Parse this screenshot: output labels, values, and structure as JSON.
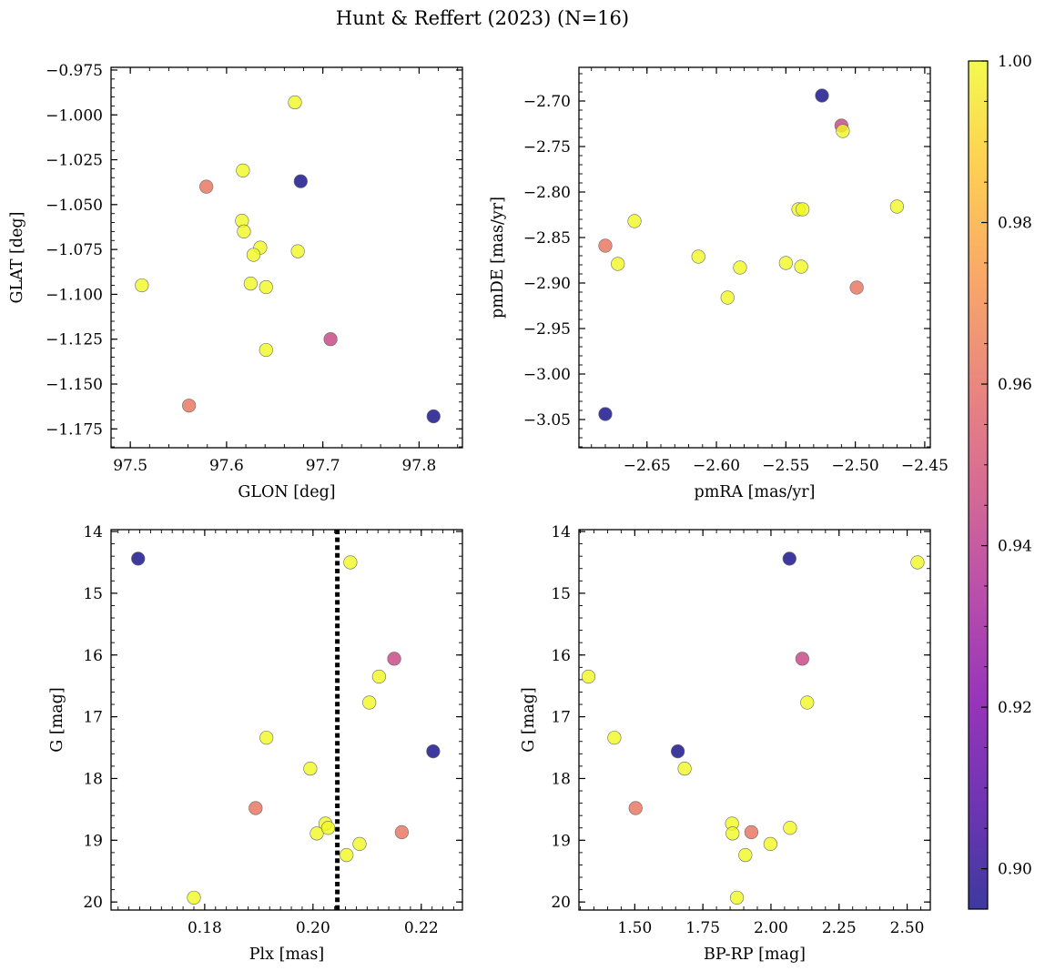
{
  "figure": {
    "title": "Hunt & Reffert (2023) (N=16)"
  },
  "colorbar": {
    "colormap": "plasma",
    "range": [
      0.895,
      1.0
    ],
    "ticks": [
      0.9,
      0.92,
      0.94,
      0.96,
      0.98,
      1.0
    ],
    "tick_labels": [
      "0.90",
      "0.92",
      "0.94",
      "0.96",
      "0.98",
      "1.00"
    ],
    "alpha": 0.8
  },
  "chart_data": [
    {
      "type": "scatter",
      "id": "glon-glat",
      "xlabel": "GLON [deg]",
      "ylabel": "GLAT [deg]",
      "xlim": [
        97.48,
        97.845
      ],
      "ylim": [
        -1.1855,
        -0.9735
      ],
      "y_inverted": false,
      "xticks": [
        97.5,
        97.6,
        97.7,
        97.8
      ],
      "xtick_labels": [
        "97.5",
        "97.6",
        "97.7",
        "97.8"
      ],
      "yticks": [
        -0.975,
        -1.0,
        -1.025,
        -1.05,
        -1.075,
        -1.1,
        -1.125,
        -1.15,
        -1.175
      ],
      "ytick_labels": [
        "−0.975",
        "−1.000",
        "−1.025",
        "−1.050",
        "−1.075",
        "−1.100",
        "−1.125",
        "−1.150",
        "−1.175"
      ],
      "xminor": 0.02,
      "yminor": 0.005,
      "x": [
        97.671,
        97.617,
        97.677,
        97.579,
        97.616,
        97.618,
        97.635,
        97.674,
        97.628,
        97.512,
        97.625,
        97.641,
        97.708,
        97.641,
        97.561,
        97.815
      ],
      "y": [
        -0.993,
        -1.031,
        -1.037,
        -1.04,
        -1.059,
        -1.065,
        -1.074,
        -1.076,
        -1.078,
        -1.095,
        -1.094,
        -1.096,
        -1.125,
        -1.131,
        -1.162,
        -1.168
      ],
      "color_values": [
        1.0,
        1.0,
        0.895,
        0.962,
        1.0,
        1.0,
        1.0,
        1.0,
        1.0,
        1.0,
        1.0,
        1.0,
        0.945,
        1.0,
        0.962,
        0.895
      ]
    },
    {
      "type": "scatter",
      "id": "pmra-pmde",
      "xlabel": "pmRA [mas/yr]",
      "ylabel": "pmDE [mas/yr]",
      "xlim": [
        -2.699,
        -2.446
      ],
      "ylim": [
        -3.081,
        -2.663
      ],
      "y_inverted": false,
      "xticks": [
        -2.65,
        -2.6,
        -2.55,
        -2.5,
        -2.45
      ],
      "xtick_labels": [
        "−2.65",
        "−2.60",
        "−2.55",
        "−2.50",
        "−2.45"
      ],
      "yticks": [
        -2.7,
        -2.75,
        -2.8,
        -2.85,
        -2.9,
        -2.95,
        -3.0,
        -3.05
      ],
      "ytick_labels": [
        "−2.70",
        "−2.75",
        "−2.80",
        "−2.85",
        "−2.90",
        "−2.95",
        "−3.00",
        "−3.05"
      ],
      "xminor": 0.01,
      "yminor": 0.01,
      "x": [
        -2.524,
        -2.51,
        -2.509,
        -2.47,
        -2.659,
        -2.541,
        -2.538,
        -2.68,
        -2.671,
        -2.613,
        -2.583,
        -2.55,
        -2.539,
        -2.499,
        -2.592,
        -2.68
      ],
      "y": [
        -2.694,
        -2.727,
        -2.733,
        -2.816,
        -2.832,
        -2.819,
        -2.819,
        -2.859,
        -2.879,
        -2.871,
        -2.883,
        -2.878,
        -2.882,
        -2.905,
        -2.916,
        -3.044
      ],
      "color_values": [
        0.895,
        0.945,
        1.0,
        1.0,
        1.0,
        1.0,
        1.0,
        0.962,
        1.0,
        1.0,
        1.0,
        1.0,
        1.0,
        0.962,
        1.0,
        0.895
      ]
    },
    {
      "type": "scatter",
      "id": "plx-g",
      "xlabel": "Plx [mas]",
      "ylabel": "G [mag]",
      "xlim": [
        0.1627,
        0.2276
      ],
      "ylim": [
        13.97,
        20.13
      ],
      "y_inverted": true,
      "xticks": [
        0.18,
        0.2,
        0.22
      ],
      "xtick_labels": [
        "0.18",
        "0.20",
        "0.22"
      ],
      "yticks": [
        14,
        15,
        16,
        17,
        18,
        19,
        20
      ],
      "ytick_labels": [
        "14",
        "15",
        "16",
        "17",
        "18",
        "19",
        "20"
      ],
      "xminor": 0.002,
      "yminor": 0.2,
      "vline": 0.2045,
      "x": [
        0.1677,
        0.2069,
        0.215,
        0.2122,
        0.2104,
        0.1914,
        0.2222,
        0.1995,
        0.1894,
        0.2164,
        0.2023,
        0.2007,
        0.2028,
        0.2086,
        0.2062,
        0.178
      ],
      "y": [
        14.44,
        14.5,
        16.06,
        16.35,
        16.77,
        17.34,
        17.56,
        17.84,
        18.48,
        18.87,
        18.73,
        18.89,
        18.8,
        19.06,
        19.24,
        19.93
      ],
      "color_values": [
        0.895,
        1.0,
        0.945,
        1.0,
        1.0,
        1.0,
        0.895,
        1.0,
        0.962,
        0.962,
        1.0,
        1.0,
        1.0,
        1.0,
        1.0,
        1.0
      ]
    },
    {
      "type": "scatter",
      "id": "bprp-g",
      "xlabel": "BP-RP [mag]",
      "ylabel": "G [mag]",
      "xlim": [
        1.295,
        2.585
      ],
      "ylim": [
        13.97,
        20.13
      ],
      "y_inverted": true,
      "xticks": [
        1.5,
        1.75,
        2.0,
        2.25,
        2.5
      ],
      "xtick_labels": [
        "1.50",
        "1.75",
        "2.00",
        "2.25",
        "2.50"
      ],
      "yticks": [
        14,
        15,
        16,
        17,
        18,
        19,
        20
      ],
      "ytick_labels": [
        "14",
        "15",
        "16",
        "17",
        "18",
        "19",
        "20"
      ],
      "xminor": 0.05,
      "yminor": 0.2,
      "x": [
        2.068,
        2.538,
        2.115,
        1.33,
        2.133,
        1.425,
        1.658,
        1.683,
        1.503,
        1.928,
        1.857,
        1.859,
        2.07,
        1.998,
        1.906,
        1.875
      ],
      "y": [
        14.44,
        14.5,
        16.06,
        16.35,
        16.77,
        17.34,
        17.56,
        17.84,
        18.48,
        18.87,
        18.73,
        18.89,
        18.8,
        19.06,
        19.24,
        19.93
      ],
      "color_values": [
        0.895,
        1.0,
        0.945,
        1.0,
        1.0,
        1.0,
        0.895,
        1.0,
        0.962,
        0.962,
        1.0,
        1.0,
        1.0,
        1.0,
        1.0,
        1.0
      ]
    }
  ]
}
